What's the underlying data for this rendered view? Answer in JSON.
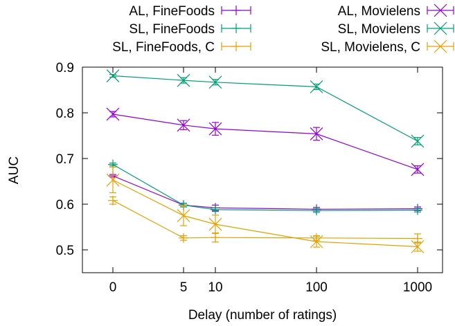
{
  "chart_data": {
    "type": "line",
    "xlabel": "Delay (number of ratings)",
    "ylabel": "AUC",
    "x": [
      "0",
      "5",
      "10",
      "100",
      "1000"
    ],
    "x_scale": "log(1+x)",
    "ylim": [
      0.45,
      0.9
    ],
    "yticks": [
      "0.5",
      "0.6",
      "0.7",
      "0.8",
      "0.9"
    ],
    "grid": false,
    "legend_position": "top",
    "series": [
      {
        "name": "AL, FineFoods",
        "color": "#9400d3",
        "marker": "plus",
        "values": [
          0.662,
          0.598,
          0.592,
          0.589,
          0.59
        ],
        "errors": [
          0.003,
          0.004,
          0.006,
          0.004,
          0.004
        ]
      },
      {
        "name": "SL, FineFoods",
        "color": "#009e73",
        "marker": "plus",
        "values": [
          0.687,
          0.598,
          0.588,
          0.586,
          0.587
        ],
        "errors": [
          0.003,
          0.004,
          0.004,
          0.004,
          0.004
        ]
      },
      {
        "name": "SL, FineFoods, C",
        "color": "#e69f00",
        "marker": "plus",
        "values": [
          0.608,
          0.526,
          0.527,
          0.526,
          0.525
        ],
        "errors": [
          0.008,
          0.005,
          0.01,
          0.005,
          0.01
        ]
      },
      {
        "name": "AL, Movielens",
        "color": "#9400d3",
        "marker": "x",
        "values": [
          0.797,
          0.773,
          0.765,
          0.754,
          0.676
        ],
        "errors": [
          0.006,
          0.01,
          0.014,
          0.014,
          0.008
        ]
      },
      {
        "name": "SL, Movielens",
        "color": "#009e73",
        "marker": "x",
        "values": [
          0.881,
          0.871,
          0.867,
          0.857,
          0.738
        ],
        "errors": [
          0.003,
          0.006,
          0.006,
          0.006,
          0.008
        ]
      },
      {
        "name": "SL, Movielens, C",
        "color": "#e69f00",
        "marker": "x",
        "values": [
          0.653,
          0.575,
          0.556,
          0.518,
          0.507
        ],
        "errors": [
          0.028,
          0.022,
          0.02,
          0.012,
          0.01
        ]
      }
    ]
  }
}
